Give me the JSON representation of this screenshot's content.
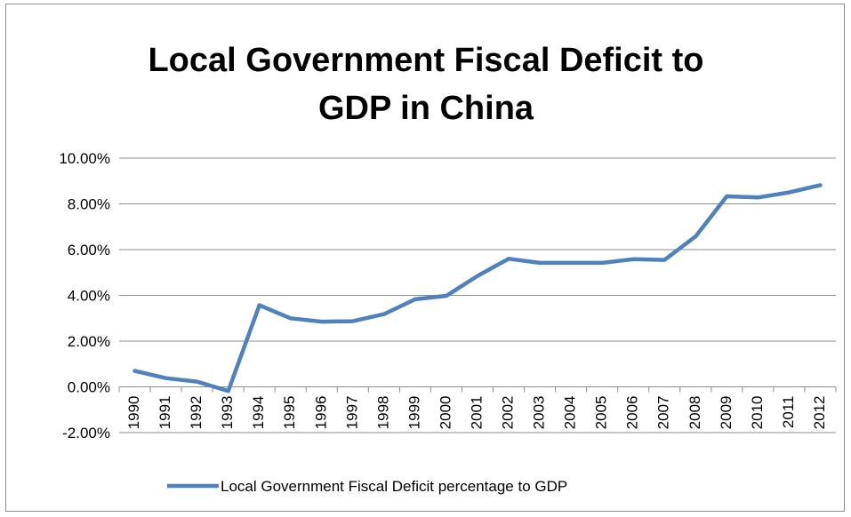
{
  "chart_data": {
    "type": "line",
    "title": "Local Government Fiscal Deficit to GDP in China",
    "xlabel": "",
    "ylabel": "",
    "categories": [
      "1990",
      "1991",
      "1992",
      "1993",
      "1994",
      "1995",
      "1996",
      "1997",
      "1998",
      "1999",
      "2000",
      "2001",
      "2002",
      "2003",
      "2004",
      "2005",
      "2006",
      "2007",
      "2008",
      "2009",
      "2010",
      "2011",
      "2012"
    ],
    "series": [
      {
        "name": "Local Government Fiscal Deficit percentage to GDP",
        "color": "#4f81bd",
        "values": [
          0.7,
          0.38,
          0.23,
          -0.18,
          3.57,
          3.0,
          2.85,
          2.87,
          3.18,
          3.83,
          3.98,
          4.85,
          5.6,
          5.42,
          5.42,
          5.42,
          5.58,
          5.55,
          6.58,
          8.33,
          8.28,
          8.5,
          8.82
        ]
      }
    ],
    "ylim": [
      -2,
      10
    ],
    "yticks": [
      -2,
      0,
      2,
      4,
      6,
      8,
      10
    ],
    "ytick_labels": [
      "-2.00%",
      "0.00%",
      "2.00%",
      "4.00%",
      "6.00%",
      "8.00%",
      "10.00%"
    ],
    "grid": true,
    "legend_position": "bottom"
  }
}
